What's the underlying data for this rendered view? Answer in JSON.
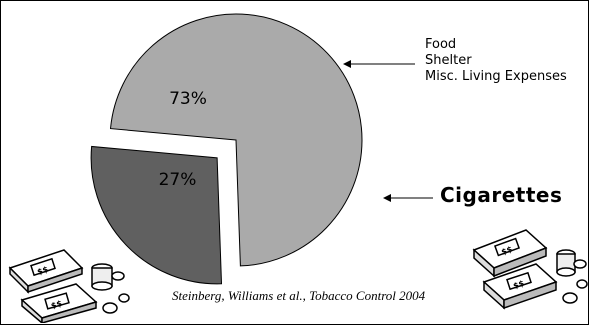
{
  "chart_data": {
    "type": "pie",
    "exploded": "Cigarettes",
    "slices": [
      {
        "label": "73%",
        "value": 73,
        "color": "#aaaaaa"
      },
      {
        "label": "27%",
        "value": 27,
        "color": "#606060"
      }
    ],
    "annotations": {
      "main_slice_items": [
        "Food",
        "Shelter",
        "Misc. Living Expenses"
      ],
      "small_slice_label": "Cigarettes"
    }
  },
  "citation": "Steinberg, Williams et al., Tobacco Control 2004",
  "icons": [
    "money-stack-icon",
    "money-stack-icon"
  ]
}
